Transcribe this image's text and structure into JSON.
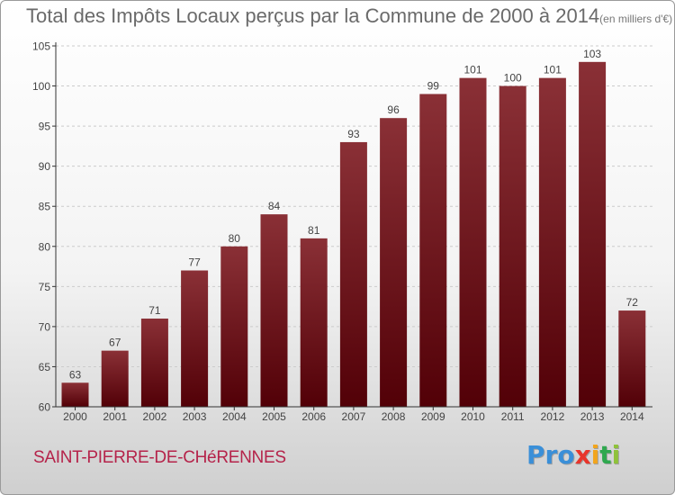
{
  "title": "Total des Impôts Locaux perçus par la Commune de 2000 à 2014",
  "title_unit": "(en milliers d'€)",
  "commune": "SAINT-PIERRE-DE-CHéRENNES",
  "logo": {
    "letters": [
      "P",
      "r",
      "o",
      "x",
      "i",
      "t",
      "i"
    ],
    "colors": [
      "#3a8fd8",
      "#3a8fd8",
      "#3a8fd8",
      "#e8352b",
      "#f2a51d",
      "#2fa84f",
      "#8fc23a"
    ]
  },
  "colors": {
    "bar_top": "#8a3036",
    "bar_bottom": "#520007",
    "axis": "#333333",
    "grid": "#cccccc"
  },
  "chart_data": {
    "type": "bar",
    "title": "Total des Impôts Locaux perçus par la Commune de 2000 à 2014",
    "xlabel": "",
    "ylabel": "",
    "categories": [
      "2000",
      "2001",
      "2002",
      "2003",
      "2004",
      "2005",
      "2006",
      "2007",
      "2008",
      "2009",
      "2010",
      "2011",
      "2012",
      "2013",
      "2014"
    ],
    "values": [
      63,
      67,
      71,
      77,
      80,
      84,
      81,
      93,
      96,
      99,
      101,
      100,
      101,
      103,
      72
    ],
    "ylim": [
      60,
      105
    ],
    "yticks": [
      60,
      65,
      70,
      75,
      80,
      85,
      90,
      95,
      100,
      105
    ]
  }
}
